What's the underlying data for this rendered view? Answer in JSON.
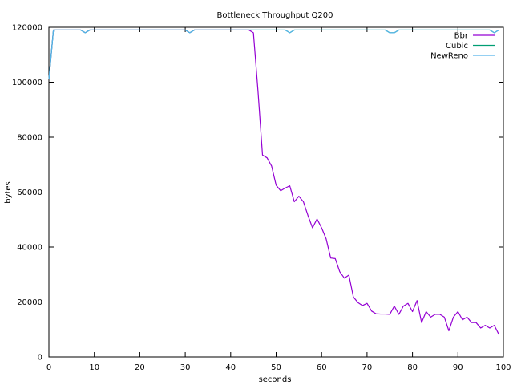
{
  "chart_data": {
    "type": "line",
    "title": "Bottleneck Throughput Q200",
    "xlabel": "seconds",
    "ylabel": "bytes",
    "xlim": [
      0,
      100
    ],
    "ylim": [
      0,
      120000
    ],
    "xticks": [
      0,
      10,
      20,
      30,
      40,
      50,
      60,
      70,
      80,
      90,
      100
    ],
    "yticks": [
      0,
      20000,
      40000,
      60000,
      80000,
      100000,
      120000
    ],
    "grid": false,
    "legend_position": "top-right",
    "series": [
      {
        "name": "Bbr",
        "color": "#9400d3",
        "x": [
          0,
          1,
          2,
          3,
          4,
          5,
          6,
          7,
          8,
          9,
          10,
          11,
          12,
          13,
          14,
          15,
          16,
          17,
          18,
          19,
          20,
          21,
          22,
          23,
          24,
          25,
          26,
          27,
          28,
          29,
          30,
          31,
          32,
          33,
          34,
          35,
          36,
          37,
          38,
          39,
          40,
          41,
          42,
          43,
          44,
          45,
          46,
          47,
          48,
          49,
          50,
          51,
          52,
          53,
          54,
          55,
          56,
          57,
          58,
          59,
          60,
          61,
          62,
          63,
          64,
          65,
          66,
          67,
          68,
          69,
          70,
          71,
          72,
          73,
          74,
          75,
          76,
          77,
          78,
          79,
          80,
          81,
          82,
          83,
          84,
          85,
          86,
          87,
          88,
          89,
          90,
          91,
          92,
          93,
          94,
          95,
          96,
          97,
          98,
          99
        ],
        "y": [
          101000,
          119000,
          119000,
          119000,
          119000,
          119000,
          119000,
          119000,
          118000,
          119000,
          119000,
          119000,
          119000,
          119000,
          119000,
          119000,
          119000,
          119000,
          119000,
          119000,
          119000,
          119000,
          119000,
          119000,
          119000,
          119000,
          119000,
          119000,
          119000,
          119000,
          119000,
          118000,
          119000,
          119000,
          119000,
          119000,
          119000,
          119000,
          119000,
          119000,
          119000,
          119000,
          119000,
          119000,
          119000,
          118000,
          97000,
          73500,
          72500,
          69500,
          62500,
          60500,
          61500,
          62300,
          56500,
          58500,
          56500,
          51500,
          47000,
          50200,
          47000,
          43000,
          36000,
          35800,
          31000,
          28700,
          29800,
          21800,
          19800,
          18700,
          19500,
          16700,
          15700,
          15600,
          15600,
          15500,
          18500,
          15500,
          18500,
          19500,
          16500,
          20500,
          12500,
          16500,
          14500,
          15500,
          15500,
          14500,
          9500,
          14500,
          16500,
          13500,
          14500,
          12500,
          12500,
          10500,
          11500,
          10500,
          11500,
          8200
        ]
      },
      {
        "name": "Cubic",
        "color": "#009e73",
        "x": [
          0,
          1,
          2,
          3,
          4,
          5,
          6,
          7,
          8,
          9,
          10,
          11,
          12,
          13,
          14,
          15,
          16,
          17,
          18,
          19,
          20,
          21,
          22,
          23,
          24,
          25,
          26,
          27,
          28,
          29,
          30,
          31,
          32,
          33,
          34,
          35,
          36,
          37,
          38,
          39,
          40,
          41,
          42,
          43,
          44,
          45,
          46,
          47,
          48,
          49,
          50,
          51,
          52,
          53,
          54,
          55,
          56,
          57,
          58,
          59,
          60,
          61,
          62,
          63,
          64,
          65,
          66,
          67,
          68,
          69,
          70,
          71,
          72,
          73,
          74,
          75,
          76,
          77,
          78,
          79,
          80,
          81,
          82,
          83,
          84,
          85,
          86,
          87,
          88,
          89,
          90,
          91,
          92,
          93,
          94,
          95,
          96,
          97,
          98,
          99
        ],
        "y": [
          101000,
          119000,
          119000,
          119000,
          119000,
          119000,
          119000,
          119000,
          118000,
          119000,
          119000,
          119000,
          119000,
          119000,
          119000,
          119000,
          119000,
          119000,
          119000,
          119000,
          119000,
          119000,
          119000,
          119000,
          119000,
          119000,
          119000,
          119000,
          119000,
          119000,
          119000,
          118000,
          119000,
          119000,
          119000,
          119000,
          119000,
          119000,
          119000,
          119000,
          119000,
          119000,
          119000,
          119000,
          119000,
          119000,
          119000,
          119000,
          119000,
          119000,
          119000,
          119000,
          119000,
          118000,
          119000,
          119000,
          119000,
          119000,
          119000,
          119000,
          119000,
          119000,
          119000,
          119000,
          119000,
          119000,
          119000,
          119000,
          119000,
          119000,
          119000,
          119000,
          119000,
          119000,
          119000,
          118000,
          118000,
          119000,
          119000,
          119000,
          119000,
          119000,
          119000,
          119000,
          119000,
          119000,
          119000,
          119000,
          119000,
          119000,
          119000,
          119000,
          119000,
          119000,
          119000,
          119000,
          119000,
          119000,
          118000,
          119000
        ]
      },
      {
        "name": "NewReno",
        "color": "#56b4e9",
        "x": [
          0,
          1,
          2,
          3,
          4,
          5,
          6,
          7,
          8,
          9,
          10,
          11,
          12,
          13,
          14,
          15,
          16,
          17,
          18,
          19,
          20,
          21,
          22,
          23,
          24,
          25,
          26,
          27,
          28,
          29,
          30,
          31,
          32,
          33,
          34,
          35,
          36,
          37,
          38,
          39,
          40,
          41,
          42,
          43,
          44,
          45,
          46,
          47,
          48,
          49,
          50,
          51,
          52,
          53,
          54,
          55,
          56,
          57,
          58,
          59,
          60,
          61,
          62,
          63,
          64,
          65,
          66,
          67,
          68,
          69,
          70,
          71,
          72,
          73,
          74,
          75,
          76,
          77,
          78,
          79,
          80,
          81,
          82,
          83,
          84,
          85,
          86,
          87,
          88,
          89,
          90,
          91,
          92,
          93,
          94,
          95,
          96,
          97,
          98,
          99
        ],
        "y": [
          101000,
          119000,
          119000,
          119000,
          119000,
          119000,
          119000,
          119000,
          118000,
          119000,
          119000,
          119000,
          119000,
          119000,
          119000,
          119000,
          119000,
          119000,
          119000,
          119000,
          119000,
          119000,
          119000,
          119000,
          119000,
          119000,
          119000,
          119000,
          119000,
          119000,
          119000,
          118000,
          119000,
          119000,
          119000,
          119000,
          119000,
          119000,
          119000,
          119000,
          119000,
          119000,
          119000,
          119000,
          119000,
          119000,
          119000,
          119000,
          119000,
          119000,
          119000,
          119000,
          119000,
          118000,
          119000,
          119000,
          119000,
          119000,
          119000,
          119000,
          119000,
          119000,
          119000,
          119000,
          119000,
          119000,
          119000,
          119000,
          119000,
          119000,
          119000,
          119000,
          119000,
          119000,
          119000,
          118000,
          118000,
          119000,
          119000,
          119000,
          119000,
          119000,
          119000,
          119000,
          119000,
          119000,
          119000,
          119000,
          119000,
          119000,
          119000,
          119000,
          119000,
          119000,
          119000,
          119000,
          119000,
          119000,
          118000,
          119000
        ]
      }
    ]
  }
}
